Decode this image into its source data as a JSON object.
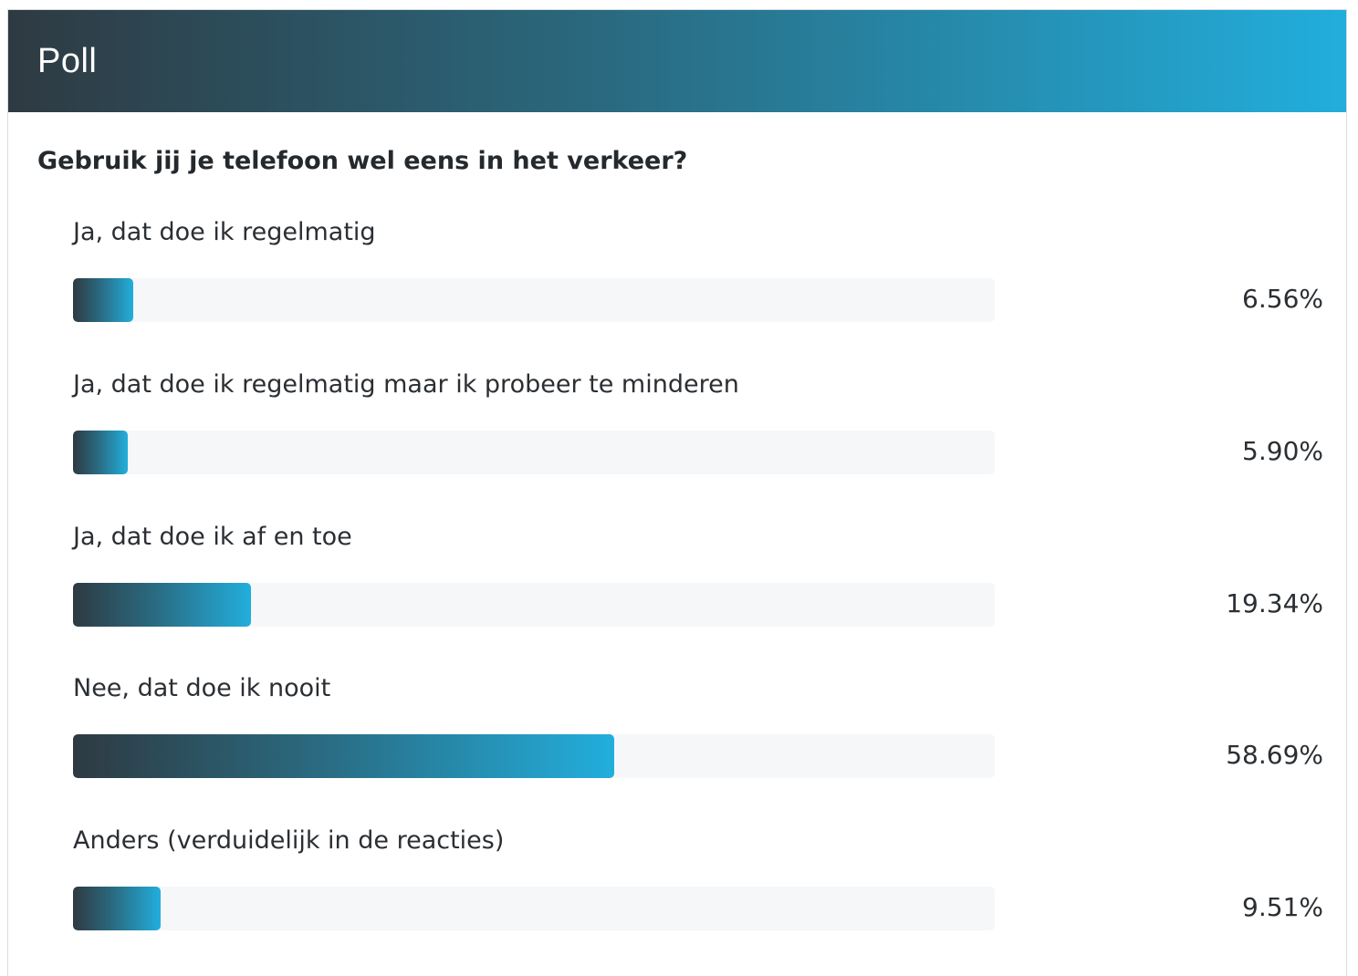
{
  "poll": {
    "title": "Poll",
    "question": "Gebruik jij je telefoon wel eens in het verkeer?",
    "accent_start": "#2e3a42",
    "accent_end": "#22aedc",
    "options": [
      {
        "label": "Ja, dat doe ik regelmatig",
        "percent_label": "6.56%",
        "percent": 6.56
      },
      {
        "label": "Ja, dat doe ik regelmatig maar ik probeer te minderen",
        "percent_label": "5.90%",
        "percent": 5.9
      },
      {
        "label": "Ja, dat doe ik af en toe",
        "percent_label": "19.34%",
        "percent": 19.34
      },
      {
        "label": "Nee, dat doe ik nooit",
        "percent_label": "58.69%",
        "percent": 58.69
      },
      {
        "label": "Anders (verduidelijk in de reacties)",
        "percent_label": "9.51%",
        "percent": 9.51
      }
    ]
  }
}
